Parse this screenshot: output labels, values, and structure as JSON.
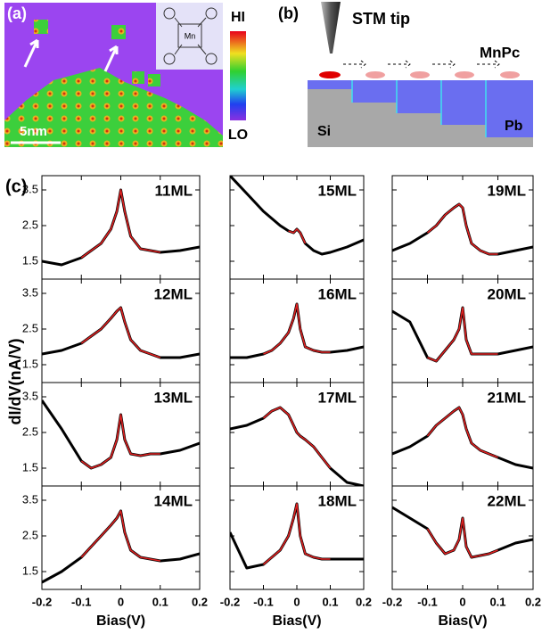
{
  "panels": {
    "a": {
      "label": "(a)",
      "hi": "HI",
      "lo": "LO",
      "scale": "5nm",
      "atom": "Mn"
    },
    "b": {
      "label": "(b)",
      "tip": "STM tip",
      "molecule": "MnPc",
      "substrate": "Si",
      "film": "Pb"
    },
    "c": {
      "label": "(c)",
      "ylabel": "dI/dV(nA/V)"
    }
  },
  "chart_data": [
    {
      "type": "line",
      "title": "11ML",
      "x": [
        -0.2,
        -0.15,
        -0.1,
        -0.075,
        -0.05,
        -0.025,
        -0.01,
        0,
        0.01,
        0.025,
        0.05,
        0.075,
        0.1,
        0.15,
        0.2
      ],
      "series": [
        {
          "color": "#000000",
          "values": [
            1.5,
            1.4,
            1.6,
            1.8,
            2.0,
            2.4,
            2.9,
            3.5,
            2.9,
            2.2,
            1.85,
            1.8,
            1.75,
            1.8,
            1.9
          ]
        },
        {
          "color": "#e02020",
          "values": [
            null,
            null,
            1.6,
            1.8,
            2.0,
            2.4,
            2.9,
            3.5,
            2.9,
            2.2,
            1.85,
            1.8,
            1.75,
            null,
            null
          ]
        }
      ],
      "xlim": [
        -0.2,
        0.2
      ],
      "ylim": [
        1.0,
        3.9
      ],
      "xticks": [
        -0.2,
        -0.1,
        0,
        0.1,
        0.2
      ],
      "yticks": [
        1.5,
        2.5,
        3.5
      ]
    },
    {
      "type": "line",
      "title": "12ML",
      "x": [
        -0.2,
        -0.15,
        -0.1,
        -0.075,
        -0.05,
        -0.025,
        -0.01,
        0,
        0.01,
        0.025,
        0.05,
        0.075,
        0.1,
        0.15,
        0.2
      ],
      "series": [
        {
          "color": "#000000",
          "values": [
            1.8,
            1.9,
            2.1,
            2.3,
            2.5,
            2.8,
            3.0,
            3.1,
            2.7,
            2.2,
            1.9,
            1.8,
            1.7,
            1.7,
            1.8
          ]
        },
        {
          "color": "#e02020",
          "values": [
            null,
            null,
            2.1,
            2.3,
            2.5,
            2.8,
            3.0,
            3.1,
            2.7,
            2.2,
            1.9,
            1.8,
            1.7,
            null,
            null
          ]
        }
      ],
      "xlim": [
        -0.2,
        0.2
      ],
      "ylim": [
        1.0,
        3.9
      ],
      "xticks": [
        -0.2,
        -0.1,
        0,
        0.1,
        0.2
      ],
      "yticks": [
        1.5,
        2.5,
        3.5
      ]
    },
    {
      "type": "line",
      "title": "13ML",
      "x": [
        -0.2,
        -0.15,
        -0.1,
        -0.075,
        -0.05,
        -0.025,
        -0.01,
        0,
        0.01,
        0.025,
        0.05,
        0.075,
        0.1,
        0.15,
        0.2
      ],
      "series": [
        {
          "color": "#000000",
          "values": [
            3.4,
            2.6,
            1.7,
            1.5,
            1.6,
            1.8,
            2.3,
            3.0,
            2.3,
            1.9,
            1.85,
            1.9,
            1.9,
            2.0,
            2.2
          ]
        },
        {
          "color": "#e02020",
          "values": [
            null,
            null,
            1.7,
            1.5,
            1.6,
            1.8,
            2.3,
            3.0,
            2.3,
            1.9,
            1.85,
            1.9,
            1.9,
            null,
            null
          ]
        }
      ],
      "xlim": [
        -0.2,
        0.2
      ],
      "ylim": [
        1.0,
        3.9
      ],
      "xticks": [
        -0.2,
        -0.1,
        0,
        0.1,
        0.2
      ],
      "yticks": [
        1.5,
        2.5,
        3.5
      ]
    },
    {
      "type": "line",
      "title": "14ML",
      "xlabel": "Bias(V)",
      "x": [
        -0.2,
        -0.15,
        -0.1,
        -0.075,
        -0.05,
        -0.025,
        -0.01,
        0,
        0.01,
        0.025,
        0.05,
        0.075,
        0.1,
        0.15,
        0.2
      ],
      "series": [
        {
          "color": "#000000",
          "values": [
            1.2,
            1.5,
            1.9,
            2.2,
            2.5,
            2.8,
            3.0,
            3.2,
            2.6,
            2.1,
            1.9,
            1.85,
            1.8,
            1.85,
            2.0
          ]
        },
        {
          "color": "#e02020",
          "values": [
            null,
            null,
            1.9,
            2.2,
            2.5,
            2.8,
            3.0,
            3.2,
            2.6,
            2.1,
            1.9,
            1.85,
            1.8,
            null,
            null
          ]
        }
      ],
      "xlim": [
        -0.2,
        0.2
      ],
      "ylim": [
        1.0,
        3.9
      ],
      "xticks": [
        -0.2,
        -0.1,
        0,
        0.1,
        0.2
      ],
      "yticks": [
        1.5,
        2.5,
        3.5
      ]
    },
    {
      "type": "line",
      "title": "15ML",
      "x": [
        -0.2,
        -0.15,
        -0.1,
        -0.075,
        -0.05,
        -0.025,
        -0.01,
        0,
        0.01,
        0.025,
        0.05,
        0.075,
        0.1,
        0.15,
        0.2
      ],
      "series": [
        {
          "color": "#000000",
          "values": [
            3.9,
            3.4,
            2.9,
            2.7,
            2.5,
            2.35,
            2.3,
            2.4,
            2.3,
            2.0,
            1.8,
            1.7,
            1.75,
            1.9,
            2.1
          ]
        },
        {
          "color": "#e02020",
          "values": [
            null,
            null,
            null,
            null,
            null,
            2.35,
            2.3,
            2.4,
            2.3,
            2.0,
            null,
            null,
            null,
            null,
            null
          ]
        }
      ],
      "xlim": [
        -0.2,
        0.2
      ],
      "ylim": [
        1.0,
        3.9
      ],
      "xticks": [
        -0.2,
        -0.1,
        0,
        0.1,
        0.2
      ],
      "yticks": [
        1.5,
        2.5,
        3.5
      ]
    },
    {
      "type": "line",
      "title": "16ML",
      "x": [
        -0.2,
        -0.15,
        -0.1,
        -0.075,
        -0.05,
        -0.025,
        -0.01,
        0,
        0.01,
        0.025,
        0.05,
        0.075,
        0.1,
        0.15,
        0.2
      ],
      "series": [
        {
          "color": "#000000",
          "values": [
            1.7,
            1.7,
            1.8,
            1.9,
            2.1,
            2.4,
            2.8,
            3.2,
            2.5,
            2.0,
            1.9,
            1.85,
            1.85,
            1.9,
            2.0
          ]
        },
        {
          "color": "#e02020",
          "values": [
            null,
            null,
            1.8,
            1.9,
            2.1,
            2.4,
            2.8,
            3.2,
            2.5,
            2.0,
            1.9,
            1.85,
            1.85,
            null,
            null
          ]
        }
      ],
      "xlim": [
        -0.2,
        0.2
      ],
      "ylim": [
        1.0,
        3.9
      ],
      "xticks": [
        -0.2,
        -0.1,
        0,
        0.1,
        0.2
      ],
      "yticks": [
        1.5,
        2.5,
        3.5
      ]
    },
    {
      "type": "line",
      "title": "17ML",
      "x": [
        -0.2,
        -0.15,
        -0.1,
        -0.075,
        -0.05,
        -0.025,
        -0.01,
        0,
        0.01,
        0.025,
        0.05,
        0.075,
        0.1,
        0.15,
        0.2
      ],
      "series": [
        {
          "color": "#000000",
          "values": [
            2.6,
            2.7,
            2.9,
            3.1,
            3.2,
            3.0,
            2.7,
            2.5,
            2.4,
            2.3,
            2.1,
            1.8,
            1.5,
            1.1,
            1.0
          ]
        },
        {
          "color": "#e02020",
          "values": [
            null,
            null,
            2.9,
            3.1,
            3.2,
            3.0,
            2.7,
            2.5,
            2.4,
            2.3,
            2.1,
            1.8,
            1.5,
            null,
            null
          ]
        }
      ],
      "xlim": [
        -0.2,
        0.2
      ],
      "ylim": [
        1.0,
        3.9
      ],
      "xticks": [
        -0.2,
        -0.1,
        0,
        0.1,
        0.2
      ],
      "yticks": [
        1.5,
        2.5,
        3.5
      ]
    },
    {
      "type": "line",
      "title": "18ML",
      "xlabel": "Bias(V)",
      "x": [
        -0.2,
        -0.15,
        -0.1,
        -0.075,
        -0.05,
        -0.025,
        -0.01,
        0,
        0.01,
        0.025,
        0.05,
        0.075,
        0.1,
        0.15,
        0.2
      ],
      "series": [
        {
          "color": "#000000",
          "values": [
            2.6,
            1.6,
            1.7,
            1.9,
            2.1,
            2.5,
            3.0,
            3.4,
            2.5,
            2.0,
            1.9,
            1.85,
            1.85,
            1.85,
            1.85
          ]
        },
        {
          "color": "#e02020",
          "values": [
            null,
            null,
            1.7,
            1.9,
            2.1,
            2.5,
            3.0,
            3.4,
            2.5,
            2.0,
            1.9,
            1.85,
            1.85,
            null,
            null
          ]
        }
      ],
      "xlim": [
        -0.2,
        0.2
      ],
      "ylim": [
        1.0,
        3.9
      ],
      "xticks": [
        -0.2,
        -0.1,
        0,
        0.1,
        0.2
      ],
      "yticks": [
        1.5,
        2.5,
        3.5
      ]
    },
    {
      "type": "line",
      "title": "19ML",
      "x": [
        -0.2,
        -0.15,
        -0.1,
        -0.075,
        -0.05,
        -0.025,
        -0.01,
        0,
        0.01,
        0.025,
        0.05,
        0.075,
        0.1,
        0.15,
        0.2
      ],
      "series": [
        {
          "color": "#000000",
          "values": [
            1.8,
            2.0,
            2.3,
            2.5,
            2.8,
            3.0,
            3.1,
            3.0,
            2.5,
            2.0,
            1.8,
            1.7,
            1.7,
            1.8,
            1.9
          ]
        },
        {
          "color": "#e02020",
          "values": [
            null,
            null,
            2.3,
            2.5,
            2.8,
            3.0,
            3.1,
            3.0,
            2.5,
            2.0,
            1.8,
            1.7,
            1.7,
            null,
            null
          ]
        }
      ],
      "xlim": [
        -0.2,
        0.2
      ],
      "ylim": [
        1.0,
        3.9
      ],
      "xticks": [
        -0.2,
        -0.1,
        0,
        0.1,
        0.2
      ],
      "yticks": [
        1.5,
        2.5,
        3.5
      ]
    },
    {
      "type": "line",
      "title": "20ML",
      "x": [
        -0.2,
        -0.15,
        -0.1,
        -0.075,
        -0.05,
        -0.025,
        -0.01,
        0,
        0.01,
        0.025,
        0.05,
        0.075,
        0.1,
        0.15,
        0.2
      ],
      "series": [
        {
          "color": "#000000",
          "values": [
            3.0,
            2.7,
            1.7,
            1.6,
            1.9,
            2.2,
            2.5,
            3.1,
            2.2,
            1.8,
            1.8,
            1.8,
            1.8,
            1.9,
            2.0
          ]
        },
        {
          "color": "#e02020",
          "values": [
            null,
            null,
            1.7,
            1.6,
            1.9,
            2.2,
            2.5,
            3.1,
            2.2,
            1.8,
            1.8,
            1.8,
            1.8,
            null,
            null
          ]
        }
      ],
      "xlim": [
        -0.2,
        0.2
      ],
      "ylim": [
        1.0,
        3.9
      ],
      "xticks": [
        -0.2,
        -0.1,
        0,
        0.1,
        0.2
      ],
      "yticks": [
        1.5,
        2.5,
        3.5
      ]
    },
    {
      "type": "line",
      "title": "21ML",
      "x": [
        -0.2,
        -0.15,
        -0.1,
        -0.075,
        -0.05,
        -0.025,
        -0.01,
        0,
        0.01,
        0.025,
        0.05,
        0.075,
        0.1,
        0.15,
        0.2
      ],
      "series": [
        {
          "color": "#000000",
          "values": [
            1.9,
            2.1,
            2.4,
            2.7,
            2.9,
            3.1,
            3.2,
            3.0,
            2.6,
            2.2,
            2.0,
            1.9,
            1.8,
            1.6,
            1.5
          ]
        },
        {
          "color": "#e02020",
          "values": [
            null,
            null,
            2.4,
            2.7,
            2.9,
            3.1,
            3.2,
            3.0,
            2.6,
            2.2,
            2.0,
            1.9,
            1.8,
            null,
            null
          ]
        }
      ],
      "xlim": [
        -0.2,
        0.2
      ],
      "ylim": [
        1.0,
        3.9
      ],
      "xticks": [
        -0.2,
        -0.1,
        0,
        0.1,
        0.2
      ],
      "yticks": [
        1.5,
        2.5,
        3.5
      ]
    },
    {
      "type": "line",
      "title": "22ML",
      "xlabel": "Bias(V)",
      "x": [
        -0.2,
        -0.15,
        -0.1,
        -0.075,
        -0.05,
        -0.025,
        -0.01,
        0,
        0.01,
        0.025,
        0.05,
        0.075,
        0.1,
        0.15,
        0.2
      ],
      "series": [
        {
          "color": "#000000",
          "values": [
            3.3,
            3.0,
            2.7,
            2.3,
            2.0,
            2.1,
            2.4,
            3.0,
            2.2,
            1.9,
            1.95,
            2.0,
            2.1,
            2.3,
            2.4
          ]
        },
        {
          "color": "#e02020",
          "values": [
            null,
            null,
            2.7,
            2.3,
            2.0,
            2.1,
            2.4,
            3.0,
            2.2,
            1.9,
            1.95,
            2.0,
            2.1,
            null,
            null
          ]
        }
      ],
      "xlim": [
        -0.2,
        0.2
      ],
      "ylim": [
        1.0,
        3.9
      ],
      "xticks": [
        -0.2,
        -0.1,
        0,
        0.1,
        0.2
      ],
      "yticks": [
        1.5,
        2.5,
        3.5
      ]
    }
  ]
}
